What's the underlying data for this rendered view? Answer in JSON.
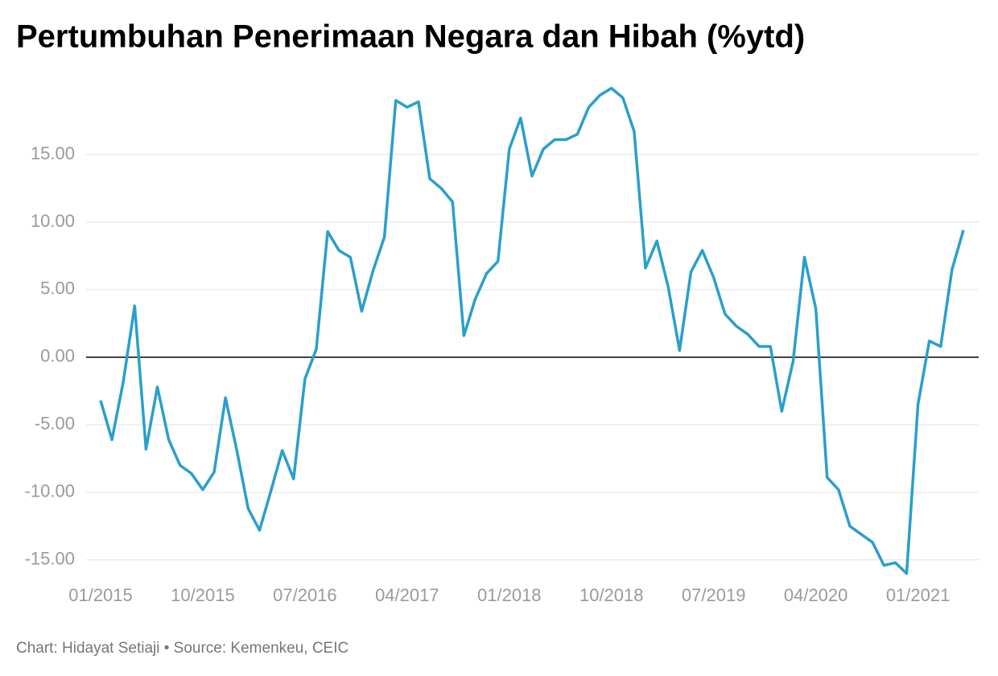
{
  "chart_data": {
    "type": "line",
    "title": "Pertumbuhan Penerimaan Negara dan Hibah (%ytd)",
    "source": "Chart: Hidayat Setiaji • Source: Kemenkeu, CEIC",
    "categories": [
      "01/2015",
      null,
      null,
      null,
      null,
      null,
      null,
      null,
      null,
      "10/2015",
      null,
      null,
      null,
      null,
      null,
      null,
      null,
      null,
      "07/2016",
      null,
      null,
      null,
      null,
      null,
      null,
      null,
      null,
      "04/2017",
      null,
      null,
      null,
      null,
      null,
      null,
      null,
      null,
      "01/2018",
      null,
      null,
      null,
      null,
      null,
      null,
      null,
      null,
      "10/2018",
      null,
      null,
      null,
      null,
      null,
      null,
      null,
      null,
      "07/2019",
      null,
      null,
      null,
      null,
      null,
      null,
      null,
      null,
      "04/2020",
      null,
      null,
      null,
      null,
      null,
      null,
      null,
      null,
      "01/2021",
      null,
      null,
      null,
      null
    ],
    "series": [
      {
        "name": "Pertumbuhan Penerimaan Negara dan Hibah",
        "color": "#2a9fcc",
        "values": [
          -3.2,
          -6.1,
          -1.8,
          3.8,
          -6.8,
          -2.2,
          -6.1,
          -8.0,
          -8.6,
          -9.8,
          -8.5,
          -3.0,
          -6.9,
          -11.2,
          -12.8,
          -9.9,
          -6.9,
          -9.0,
          -1.6,
          0.6,
          9.3,
          7.9,
          7.4,
          3.4,
          6.4,
          8.9,
          19.0,
          18.5,
          18.9,
          13.2,
          12.5,
          11.5,
          1.6,
          4.3,
          6.2,
          7.1,
          15.4,
          17.7,
          13.4,
          15.4,
          16.1,
          16.1,
          16.5,
          18.5,
          19.4,
          19.9,
          19.2,
          16.7,
          6.6,
          8.6,
          5.2,
          0.5,
          6.3,
          7.9,
          5.9,
          3.2,
          2.3,
          1.7,
          0.8,
          0.8,
          -4.0,
          -0.3,
          7.4,
          3.6,
          -8.9,
          -9.8,
          -12.5,
          -13.1,
          -13.7,
          -15.4,
          -15.2,
          -16.0,
          -3.5,
          1.2,
          0.8,
          6.5,
          9.4
        ]
      }
    ],
    "ylim": [
      -16.5,
      20
    ],
    "yticks": [
      {
        "value": -15,
        "label": "-15.00"
      },
      {
        "value": -10,
        "label": "-10.00"
      },
      {
        "value": -5,
        "label": "-5.00"
      },
      {
        "value": 0,
        "label": "0.00"
      },
      {
        "value": 5,
        "label": "5.00"
      },
      {
        "value": 10,
        "label": "10.00"
      },
      {
        "value": 15,
        "label": "15.00"
      }
    ],
    "grid": true
  }
}
